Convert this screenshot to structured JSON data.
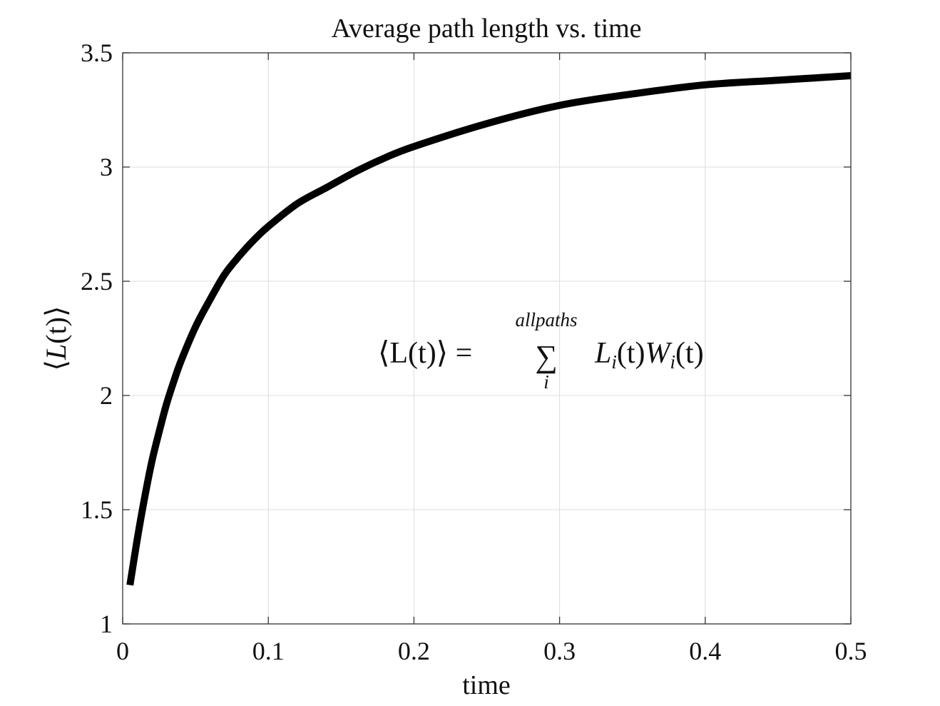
{
  "chart_data": {
    "type": "line",
    "title": "Average path length vs. time",
    "xlabel": "time",
    "ylabel": {
      "open": "⟨",
      "symbol": "L",
      "arg": "(t)",
      "close": "⟩"
    },
    "xlim": [
      0,
      0.5
    ],
    "ylim": [
      1,
      3.5
    ],
    "xticks": [
      0,
      0.1,
      0.2,
      0.3,
      0.4,
      0.5
    ],
    "xtick_labels": [
      "0",
      "0.1",
      "0.2",
      "0.3",
      "0.4",
      "0.5"
    ],
    "yticks": [
      1,
      1.5,
      2,
      2.5,
      3,
      3.5
    ],
    "ytick_labels": [
      "1",
      "1.5",
      "2",
      "2.5",
      "3",
      "3.5"
    ],
    "grid": true,
    "line_color": "#000000",
    "annotation": {
      "lhs": "⟨L(t)⟩ =",
      "sum": "∑",
      "upper": "allpaths",
      "lower": "i",
      "rhs_L": "L",
      "rhs_i1": "i",
      "rhs_t1": "(t)",
      "rhs_W": "W",
      "rhs_i2": "i",
      "rhs_t2": "(t)"
    },
    "series": [
      {
        "x": [
          0.005,
          0.01,
          0.015,
          0.02,
          0.025,
          0.03,
          0.035,
          0.04,
          0.05,
          0.06,
          0.07,
          0.08,
          0.09,
          0.1,
          0.12,
          0.14,
          0.16,
          0.18,
          0.2,
          0.25,
          0.3,
          0.35,
          0.4,
          0.45,
          0.5
        ],
        "y": [
          1.17,
          1.37,
          1.55,
          1.71,
          1.84,
          1.96,
          2.06,
          2.15,
          2.3,
          2.42,
          2.53,
          2.61,
          2.68,
          2.74,
          2.84,
          2.91,
          2.98,
          3.04,
          3.09,
          3.19,
          3.27,
          3.32,
          3.36,
          3.38,
          3.4
        ]
      }
    ]
  }
}
